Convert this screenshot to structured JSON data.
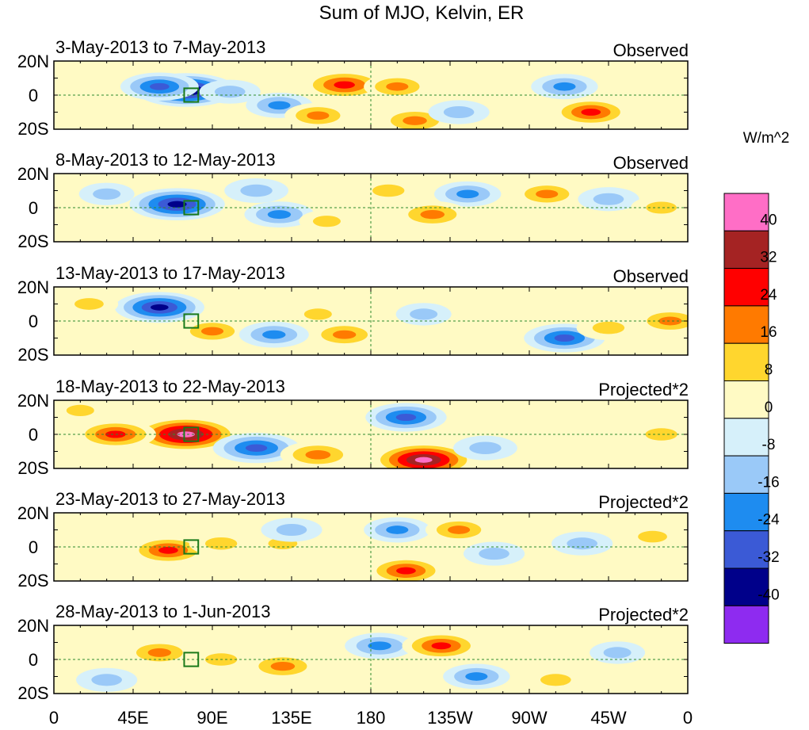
{
  "chart_data": {
    "type": "heatmap",
    "title": "Sum of MJO, Kelvin, ER",
    "units_label": "W/m^2",
    "x_ticks": [
      "0",
      "45E",
      "90E",
      "135E",
      "180",
      "135W",
      "90W",
      "45W",
      "0"
    ],
    "y_ticks": [
      "20N",
      "0",
      "20S"
    ],
    "xlim": [
      0,
      360
    ],
    "ylim": [
      -20,
      20
    ],
    "colorbar": {
      "levels": [
        -40,
        -32,
        -24,
        -16,
        -8,
        0,
        8,
        16,
        24,
        32,
        40
      ],
      "tick_labels": [
        "40",
        "32",
        "24",
        "16",
        "8",
        "0",
        "-8",
        "-16",
        "-24",
        "-32",
        "-40"
      ],
      "colors": [
        "#8e2bf0",
        "#00008a",
        "#3b5ad6",
        "#1e8cf0",
        "#9ac9f8",
        "#d6f0fa",
        "#fffac4",
        "#ffd62e",
        "#ff7a00",
        "#ff0000",
        "#a52323",
        "#ff6ec6"
      ]
    },
    "panels": [
      {
        "date_range": "3-May-2013 to 7-May-2013",
        "label": "Observed",
        "anomalies": [
          {
            "lon": 75,
            "lat": 3,
            "value": -42
          },
          {
            "lon": 60,
            "lat": 5,
            "value": -26
          },
          {
            "lon": 100,
            "lat": 2,
            "value": -14
          },
          {
            "lon": 128,
            "lat": -6,
            "value": -18
          },
          {
            "lon": 165,
            "lat": 6,
            "value": 30
          },
          {
            "lon": 195,
            "lat": 5,
            "value": 18
          },
          {
            "lon": 150,
            "lat": -12,
            "value": 18
          },
          {
            "lon": 205,
            "lat": -15,
            "value": 22
          },
          {
            "lon": 230,
            "lat": -10,
            "value": -14
          },
          {
            "lon": 305,
            "lat": -10,
            "value": 26
          },
          {
            "lon": 290,
            "lat": 5,
            "value": -18
          },
          {
            "lon": 20,
            "lat": 0,
            "value": 8
          }
        ]
      },
      {
        "date_range": "8-May-2013 to 12-May-2013",
        "label": "Observed",
        "anomalies": [
          {
            "lon": 70,
            "lat": 2,
            "value": -38
          },
          {
            "lon": 115,
            "lat": 10,
            "value": -16
          },
          {
            "lon": 128,
            "lat": -4,
            "value": -20
          },
          {
            "lon": 155,
            "lat": -8,
            "value": 10
          },
          {
            "lon": 190,
            "lat": 10,
            "value": 16
          },
          {
            "lon": 235,
            "lat": 8,
            "value": -18
          },
          {
            "lon": 280,
            "lat": 8,
            "value": 18
          },
          {
            "lon": 215,
            "lat": -4,
            "value": 22
          },
          {
            "lon": 315,
            "lat": 5,
            "value": -14
          },
          {
            "lon": 345,
            "lat": 0,
            "value": 14
          },
          {
            "lon": 30,
            "lat": 8,
            "value": -10
          }
        ]
      },
      {
        "date_range": "13-May-2013 to 17-May-2013",
        "label": "Observed",
        "anomalies": [
          {
            "lon": 60,
            "lat": 8,
            "value": -34
          },
          {
            "lon": 90,
            "lat": -6,
            "value": 18
          },
          {
            "lon": 125,
            "lat": -8,
            "value": -20
          },
          {
            "lon": 165,
            "lat": -8,
            "value": 20
          },
          {
            "lon": 150,
            "lat": 4,
            "value": 10
          },
          {
            "lon": 210,
            "lat": 4,
            "value": -10
          },
          {
            "lon": 290,
            "lat": -10,
            "value": -28
          },
          {
            "lon": 315,
            "lat": -4,
            "value": 16
          },
          {
            "lon": 350,
            "lat": 0,
            "value": 20
          },
          {
            "lon": 20,
            "lat": 10,
            "value": 12
          }
        ]
      },
      {
        "date_range": "18-May-2013 to 22-May-2013",
        "label": "Projected*2",
        "anomalies": [
          {
            "lon": 75,
            "lat": 0,
            "value": 46
          },
          {
            "lon": 35,
            "lat": 0,
            "value": 28
          },
          {
            "lon": 115,
            "lat": -8,
            "value": -32
          },
          {
            "lon": 150,
            "lat": -12,
            "value": 24
          },
          {
            "lon": 210,
            "lat": -15,
            "value": 44
          },
          {
            "lon": 200,
            "lat": 10,
            "value": -28
          },
          {
            "lon": 245,
            "lat": -8,
            "value": -16
          },
          {
            "lon": 345,
            "lat": 0,
            "value": 16
          },
          {
            "lon": 15,
            "lat": 14,
            "value": 10
          }
        ]
      },
      {
        "date_range": "23-May-2013 to 27-May-2013",
        "label": "Projected*2",
        "anomalies": [
          {
            "lon": 65,
            "lat": -2,
            "value": 26
          },
          {
            "lon": 95,
            "lat": 2,
            "value": 16
          },
          {
            "lon": 130,
            "lat": 2,
            "value": 12
          },
          {
            "lon": 135,
            "lat": 10,
            "value": -14
          },
          {
            "lon": 195,
            "lat": 10,
            "value": -18
          },
          {
            "lon": 230,
            "lat": 10,
            "value": 18
          },
          {
            "lon": 200,
            "lat": -14,
            "value": 26
          },
          {
            "lon": 250,
            "lat": -4,
            "value": -14
          },
          {
            "lon": 300,
            "lat": 2,
            "value": -14
          },
          {
            "lon": 340,
            "lat": 6,
            "value": 12
          }
        ]
      },
      {
        "date_range": "28-May-2013 to 1-Jun-2013",
        "label": "Projected*2",
        "anomalies": [
          {
            "lon": 60,
            "lat": 4,
            "value": 20
          },
          {
            "lon": 95,
            "lat": 0,
            "value": 16
          },
          {
            "lon": 130,
            "lat": -4,
            "value": 22
          },
          {
            "lon": 185,
            "lat": 8,
            "value": -20
          },
          {
            "lon": 220,
            "lat": 8,
            "value": 26
          },
          {
            "lon": 240,
            "lat": -10,
            "value": -18
          },
          {
            "lon": 285,
            "lat": -12,
            "value": 14
          },
          {
            "lon": 30,
            "lat": -12,
            "value": -14
          },
          {
            "lon": 320,
            "lat": 4,
            "value": -10
          }
        ]
      }
    ]
  }
}
